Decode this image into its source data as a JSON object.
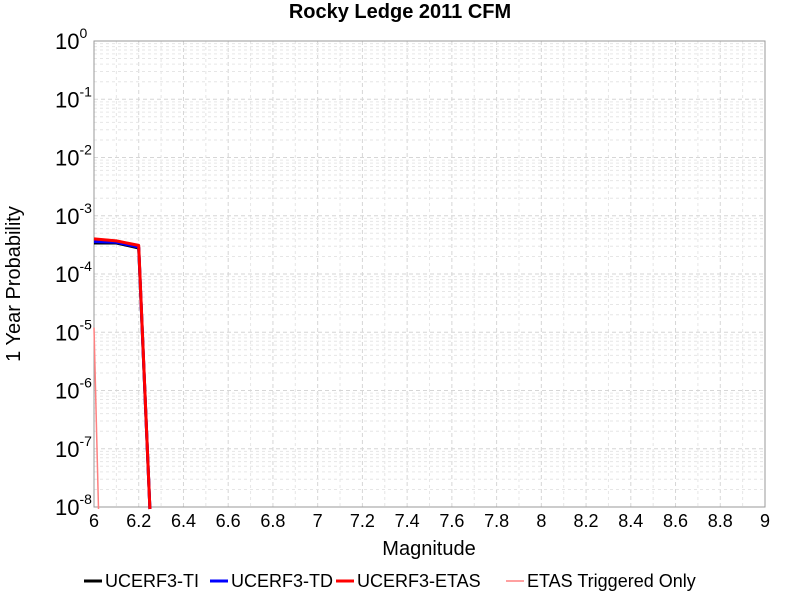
{
  "chart_data": {
    "type": "line",
    "title": "Rocky Ledge 2011 CFM",
    "xlabel": "Magnitude",
    "ylabel": "1 Year Probability",
    "xlim": [
      6,
      9
    ],
    "ylim": [
      1e-08,
      1
    ],
    "yscale": "log",
    "grid": true,
    "legend_position": "bottom",
    "xticks": [
      "6",
      "6.2",
      "6.4",
      "6.6",
      "6.8",
      "7",
      "7.2",
      "7.4",
      "7.6",
      "7.8",
      "8",
      "8.2",
      "8.4",
      "8.6",
      "8.8",
      "9"
    ],
    "yticks": [
      {
        "base": "10",
        "exp": "0"
      },
      {
        "base": "10",
        "exp": "-1"
      },
      {
        "base": "10",
        "exp": "-2"
      },
      {
        "base": "10",
        "exp": "-3"
      },
      {
        "base": "10",
        "exp": "-4"
      },
      {
        "base": "10",
        "exp": "-5"
      },
      {
        "base": "10",
        "exp": "-6"
      },
      {
        "base": "10",
        "exp": "-7"
      },
      {
        "base": "10",
        "exp": "-8"
      }
    ],
    "series": [
      {
        "name": "UCERF3-TI",
        "color": "#000000",
        "x": [
          6.0,
          6.1,
          6.2,
          6.25
        ],
        "y": [
          0.00034,
          0.00034,
          0.00028,
          1e-09
        ]
      },
      {
        "name": "UCERF3-TD",
        "color": "#0000ff",
        "x": [
          6.0,
          6.1,
          6.2,
          6.25
        ],
        "y": [
          0.00036,
          0.00035,
          0.00029,
          1e-09
        ]
      },
      {
        "name": "UCERF3-ETAS",
        "color": "#ff0000",
        "x": [
          6.0,
          6.1,
          6.2,
          6.25
        ],
        "y": [
          0.0004,
          0.00037,
          0.00031,
          1e-09
        ]
      },
      {
        "name": "ETAS Triggered Only",
        "color": "#ff8080",
        "x": [
          6.0,
          6.02
        ],
        "y": [
          1.2e-05,
          1e-09
        ]
      }
    ]
  }
}
